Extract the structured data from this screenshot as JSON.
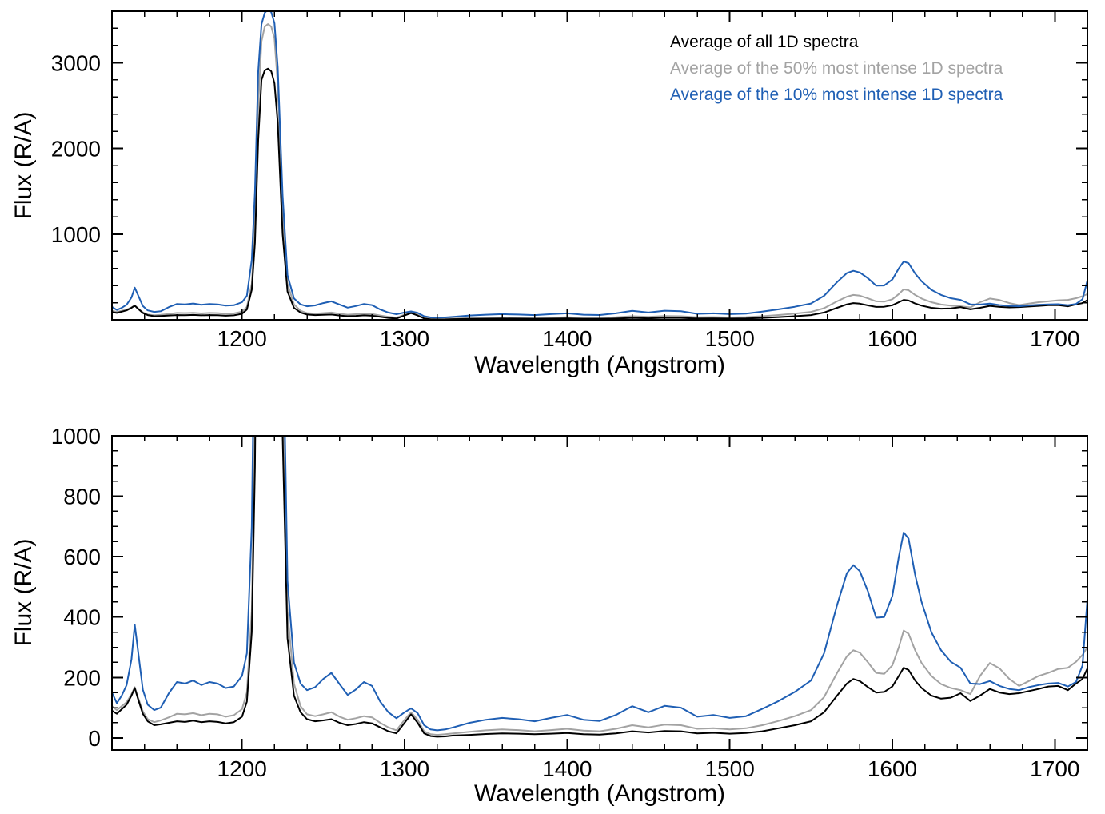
{
  "figure": {
    "background": "#ffffff",
    "frame_color": "#000000",
    "tick_color": "#000000"
  },
  "chart_data": {
    "type": "line",
    "title": "",
    "grid": false,
    "legend_position": "top-right-inside",
    "x_units": "Angstrom",
    "y_units": "R/A",
    "x": [
      1120,
      1123,
      1126,
      1129,
      1132,
      1134,
      1136,
      1139,
      1142,
      1146,
      1150,
      1155,
      1160,
      1165,
      1170,
      1175,
      1180,
      1185,
      1190,
      1195,
      1200,
      1203,
      1206,
      1208,
      1210,
      1212,
      1214,
      1216,
      1218,
      1220,
      1222,
      1225,
      1228,
      1232,
      1236,
      1240,
      1245,
      1250,
      1255,
      1260,
      1265,
      1270,
      1275,
      1280,
      1285,
      1290,
      1295,
      1300,
      1304,
      1308,
      1312,
      1316,
      1320,
      1325,
      1330,
      1340,
      1350,
      1360,
      1370,
      1380,
      1390,
      1400,
      1410,
      1420,
      1430,
      1440,
      1450,
      1460,
      1470,
      1480,
      1490,
      1500,
      1510,
      1520,
      1530,
      1540,
      1550,
      1558,
      1566,
      1572,
      1576,
      1580,
      1585,
      1590,
      1595,
      1600,
      1604,
      1607,
      1610,
      1614,
      1618,
      1624,
      1630,
      1636,
      1642,
      1648,
      1654,
      1660,
      1666,
      1672,
      1678,
      1684,
      1690,
      1696,
      1702,
      1708,
      1713,
      1717,
      1720
    ],
    "series": [
      {
        "name": "Average of all 1D spectra",
        "color": "#000000",
        "values": [
          90,
          80,
          95,
          110,
          140,
          165,
          130,
          80,
          55,
          42,
          45,
          50,
          55,
          53,
          57,
          52,
          55,
          53,
          48,
          52,
          70,
          120,
          350,
          900,
          2100,
          2800,
          2910,
          2930,
          2900,
          2760,
          2300,
          1000,
          330,
          140,
          85,
          62,
          55,
          58,
          62,
          50,
          42,
          46,
          52,
          48,
          35,
          22,
          15,
          50,
          78,
          50,
          15,
          6,
          4,
          5,
          8,
          10,
          13,
          15,
          14,
          12,
          14,
          16,
          12,
          11,
          15,
          22,
          18,
          23,
          22,
          15,
          17,
          14,
          16,
          22,
          32,
          42,
          55,
          85,
          140,
          180,
          195,
          188,
          168,
          150,
          152,
          170,
          205,
          232,
          225,
          190,
          165,
          140,
          130,
          133,
          148,
          122,
          140,
          162,
          150,
          145,
          148,
          155,
          162,
          170,
          172,
          158,
          180,
          195,
          230
        ]
      },
      {
        "name": "Average of the 50% most intense 1D spectra",
        "color": "#a3a3a3",
        "values": [
          105,
          92,
          105,
          118,
          145,
          168,
          135,
          88,
          62,
          52,
          58,
          68,
          80,
          78,
          82,
          75,
          80,
          78,
          70,
          75,
          95,
          150,
          420,
          1100,
          2500,
          3250,
          3420,
          3450,
          3420,
          3280,
          2750,
          1250,
          420,
          180,
          105,
          78,
          72,
          78,
          85,
          70,
          60,
          65,
          72,
          68,
          50,
          35,
          25,
          60,
          85,
          60,
          22,
          12,
          10,
          12,
          15,
          20,
          25,
          28,
          26,
          22,
          26,
          30,
          24,
          22,
          30,
          42,
          35,
          44,
          42,
          30,
          32,
          28,
          32,
          42,
          56,
          72,
          92,
          135,
          215,
          270,
          290,
          282,
          250,
          215,
          212,
          240,
          300,
          355,
          345,
          290,
          248,
          205,
          178,
          165,
          158,
          145,
          205,
          248,
          230,
          195,
          172,
          188,
          205,
          215,
          228,
          232,
          252,
          275,
          300
        ]
      },
      {
        "name": "Average of the 10% most intense 1D spectra",
        "color": "#1f5fb4",
        "values": [
          150,
          115,
          140,
          175,
          260,
          375,
          290,
          160,
          110,
          92,
          100,
          148,
          185,
          180,
          190,
          175,
          185,
          180,
          165,
          170,
          205,
          280,
          700,
          1500,
          2900,
          3450,
          3580,
          3620,
          3590,
          3460,
          2950,
          1450,
          520,
          250,
          180,
          158,
          168,
          195,
          215,
          178,
          142,
          160,
          185,
          172,
          120,
          85,
          65,
          85,
          98,
          82,
          42,
          28,
          25,
          28,
          35,
          50,
          60,
          66,
          62,
          55,
          66,
          76,
          60,
          56,
          76,
          105,
          85,
          106,
          100,
          70,
          76,
          66,
          72,
          96,
          122,
          152,
          190,
          280,
          440,
          545,
          572,
          552,
          485,
          398,
          400,
          470,
          600,
          680,
          660,
          540,
          450,
          350,
          290,
          252,
          232,
          180,
          178,
          188,
          172,
          162,
          158,
          168,
          175,
          180,
          182,
          170,
          185,
          240,
          460
        ]
      }
    ],
    "panels": [
      {
        "name": "top",
        "xlabel": "Wavelength (Angstrom)",
        "ylabel": "Flux (R/A)",
        "xlim": [
          1120,
          1720
        ],
        "ylim": [
          0,
          3600
        ],
        "xticks": [
          1200,
          1300,
          1400,
          1500,
          1600,
          1700
        ],
        "yticks": [
          1000,
          2000,
          3000
        ],
        "x_minor": 20,
        "y_minor": 200
      },
      {
        "name": "bottom",
        "xlabel": "Wavelength (Angstrom)",
        "ylabel": "Flux (R/A)",
        "xlim": [
          1120,
          1720
        ],
        "ylim": [
          -40,
          1000
        ],
        "xticks": [
          1200,
          1300,
          1400,
          1500,
          1600,
          1700
        ],
        "yticks": [
          0,
          200,
          400,
          600,
          800,
          1000
        ],
        "x_minor": 20,
        "y_minor": 50
      }
    ]
  }
}
